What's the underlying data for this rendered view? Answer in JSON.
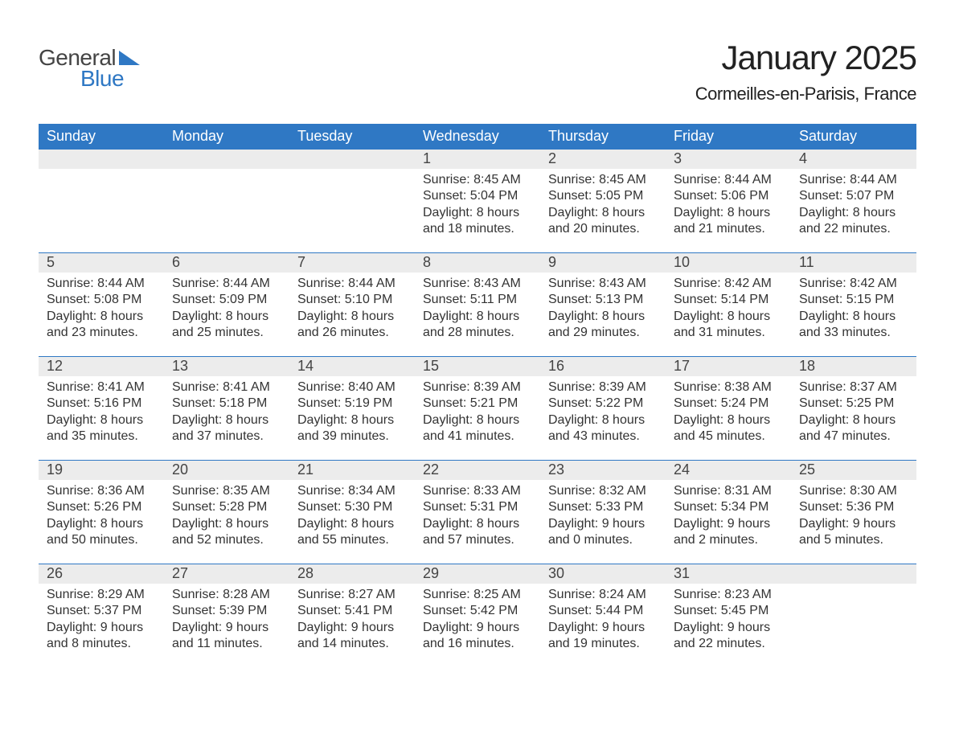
{
  "colors": {
    "header_bg": "#2f78c4",
    "daynum_bg": "#ececec",
    "week_border": "#2f78c4",
    "logo_blue": "#2f78c4",
    "logo_gray": "#444444",
    "page_bg": "#ffffff",
    "text": "#333333"
  },
  "logo": {
    "word1": "General",
    "word2": "Blue"
  },
  "title": "January 2025",
  "location": "Cormeilles-en-Parisis, France",
  "days_of_week": [
    "Sunday",
    "Monday",
    "Tuesday",
    "Wednesday",
    "Thursday",
    "Friday",
    "Saturday"
  ],
  "labels": {
    "sunrise": "Sunrise:",
    "sunset": "Sunset:",
    "daylight": "Daylight:"
  },
  "weeks": [
    [
      null,
      null,
      null,
      {
        "n": "1",
        "sunrise": "8:45 AM",
        "sunset": "5:04 PM",
        "dl1": "8 hours",
        "dl2": "and 18 minutes."
      },
      {
        "n": "2",
        "sunrise": "8:45 AM",
        "sunset": "5:05 PM",
        "dl1": "8 hours",
        "dl2": "and 20 minutes."
      },
      {
        "n": "3",
        "sunrise": "8:44 AM",
        "sunset": "5:06 PM",
        "dl1": "8 hours",
        "dl2": "and 21 minutes."
      },
      {
        "n": "4",
        "sunrise": "8:44 AM",
        "sunset": "5:07 PM",
        "dl1": "8 hours",
        "dl2": "and 22 minutes."
      }
    ],
    [
      {
        "n": "5",
        "sunrise": "8:44 AM",
        "sunset": "5:08 PM",
        "dl1": "8 hours",
        "dl2": "and 23 minutes."
      },
      {
        "n": "6",
        "sunrise": "8:44 AM",
        "sunset": "5:09 PM",
        "dl1": "8 hours",
        "dl2": "and 25 minutes."
      },
      {
        "n": "7",
        "sunrise": "8:44 AM",
        "sunset": "5:10 PM",
        "dl1": "8 hours",
        "dl2": "and 26 minutes."
      },
      {
        "n": "8",
        "sunrise": "8:43 AM",
        "sunset": "5:11 PM",
        "dl1": "8 hours",
        "dl2": "and 28 minutes."
      },
      {
        "n": "9",
        "sunrise": "8:43 AM",
        "sunset": "5:13 PM",
        "dl1": "8 hours",
        "dl2": "and 29 minutes."
      },
      {
        "n": "10",
        "sunrise": "8:42 AM",
        "sunset": "5:14 PM",
        "dl1": "8 hours",
        "dl2": "and 31 minutes."
      },
      {
        "n": "11",
        "sunrise": "8:42 AM",
        "sunset": "5:15 PM",
        "dl1": "8 hours",
        "dl2": "and 33 minutes."
      }
    ],
    [
      {
        "n": "12",
        "sunrise": "8:41 AM",
        "sunset": "5:16 PM",
        "dl1": "8 hours",
        "dl2": "and 35 minutes."
      },
      {
        "n": "13",
        "sunrise": "8:41 AM",
        "sunset": "5:18 PM",
        "dl1": "8 hours",
        "dl2": "and 37 minutes."
      },
      {
        "n": "14",
        "sunrise": "8:40 AM",
        "sunset": "5:19 PM",
        "dl1": "8 hours",
        "dl2": "and 39 minutes."
      },
      {
        "n": "15",
        "sunrise": "8:39 AM",
        "sunset": "5:21 PM",
        "dl1": "8 hours",
        "dl2": "and 41 minutes."
      },
      {
        "n": "16",
        "sunrise": "8:39 AM",
        "sunset": "5:22 PM",
        "dl1": "8 hours",
        "dl2": "and 43 minutes."
      },
      {
        "n": "17",
        "sunrise": "8:38 AM",
        "sunset": "5:24 PM",
        "dl1": "8 hours",
        "dl2": "and 45 minutes."
      },
      {
        "n": "18",
        "sunrise": "8:37 AM",
        "sunset": "5:25 PM",
        "dl1": "8 hours",
        "dl2": "and 47 minutes."
      }
    ],
    [
      {
        "n": "19",
        "sunrise": "8:36 AM",
        "sunset": "5:26 PM",
        "dl1": "8 hours",
        "dl2": "and 50 minutes."
      },
      {
        "n": "20",
        "sunrise": "8:35 AM",
        "sunset": "5:28 PM",
        "dl1": "8 hours",
        "dl2": "and 52 minutes."
      },
      {
        "n": "21",
        "sunrise": "8:34 AM",
        "sunset": "5:30 PM",
        "dl1": "8 hours",
        "dl2": "and 55 minutes."
      },
      {
        "n": "22",
        "sunrise": "8:33 AM",
        "sunset": "5:31 PM",
        "dl1": "8 hours",
        "dl2": "and 57 minutes."
      },
      {
        "n": "23",
        "sunrise": "8:32 AM",
        "sunset": "5:33 PM",
        "dl1": "9 hours",
        "dl2": "and 0 minutes."
      },
      {
        "n": "24",
        "sunrise": "8:31 AM",
        "sunset": "5:34 PM",
        "dl1": "9 hours",
        "dl2": "and 2 minutes."
      },
      {
        "n": "25",
        "sunrise": "8:30 AM",
        "sunset": "5:36 PM",
        "dl1": "9 hours",
        "dl2": "and 5 minutes."
      }
    ],
    [
      {
        "n": "26",
        "sunrise": "8:29 AM",
        "sunset": "5:37 PM",
        "dl1": "9 hours",
        "dl2": "and 8 minutes."
      },
      {
        "n": "27",
        "sunrise": "8:28 AM",
        "sunset": "5:39 PM",
        "dl1": "9 hours",
        "dl2": "and 11 minutes."
      },
      {
        "n": "28",
        "sunrise": "8:27 AM",
        "sunset": "5:41 PM",
        "dl1": "9 hours",
        "dl2": "and 14 minutes."
      },
      {
        "n": "29",
        "sunrise": "8:25 AM",
        "sunset": "5:42 PM",
        "dl1": "9 hours",
        "dl2": "and 16 minutes."
      },
      {
        "n": "30",
        "sunrise": "8:24 AM",
        "sunset": "5:44 PM",
        "dl1": "9 hours",
        "dl2": "and 19 minutes."
      },
      {
        "n": "31",
        "sunrise": "8:23 AM",
        "sunset": "5:45 PM",
        "dl1": "9 hours",
        "dl2": "and 22 minutes."
      },
      null
    ]
  ]
}
